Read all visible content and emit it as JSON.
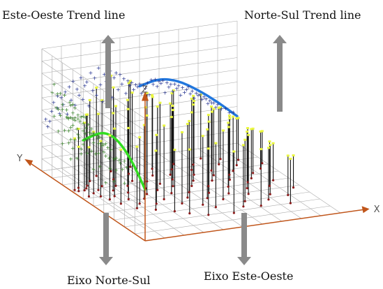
{
  "chart_data": {
    "type": "scatter",
    "title": "",
    "labels": {
      "trend_ew": "Este-Oeste  Trend line",
      "trend_ns": "Norte-Sul  Trend line",
      "axis_ns": "Eixo Norte-Sul",
      "axis_ew": "Eixo Este-Oeste"
    },
    "axes": {
      "x": "X",
      "y": "Y",
      "z": "Z"
    },
    "xlim": [
      0,
      100
    ],
    "ylim": [
      0,
      100
    ],
    "zlim": [
      0,
      100
    ],
    "grid": true,
    "samples": [
      {
        "x": 2,
        "y": 72,
        "z": 42
      },
      {
        "x": 3,
        "y": 70,
        "z": 36
      },
      {
        "x": 5,
        "y": 74,
        "z": 48
      },
      {
        "x": 4,
        "y": 62,
        "z": 40
      },
      {
        "x": 6,
        "y": 70,
        "z": 55
      },
      {
        "x": 8,
        "y": 72,
        "z": 60
      },
      {
        "x": 8,
        "y": 65,
        "z": 50
      },
      {
        "x": 9,
        "y": 60,
        "z": 45
      },
      {
        "x": 10,
        "y": 75,
        "z": 58
      },
      {
        "x": 11,
        "y": 55,
        "z": 52
      },
      {
        "x": 12,
        "y": 68,
        "z": 62
      },
      {
        "x": 13,
        "y": 48,
        "z": 44
      },
      {
        "x": 14,
        "y": 80,
        "z": 66
      },
      {
        "x": 15,
        "y": 58,
        "z": 55
      },
      {
        "x": 16,
        "y": 72,
        "z": 70
      },
      {
        "x": 17,
        "y": 40,
        "z": 50
      },
      {
        "x": 18,
        "y": 65,
        "z": 63
      },
      {
        "x": 19,
        "y": 52,
        "z": 58
      },
      {
        "x": 20,
        "y": 85,
        "z": 72
      },
      {
        "x": 21,
        "y": 45,
        "z": 54
      },
      {
        "x": 22,
        "y": 70,
        "z": 65
      },
      {
        "x": 23,
        "y": 60,
        "z": 68
      },
      {
        "x": 24,
        "y": 35,
        "z": 48
      },
      {
        "x": 25,
        "y": 78,
        "z": 75
      },
      {
        "x": 26,
        "y": 50,
        "z": 60
      },
      {
        "x": 27,
        "y": 68,
        "z": 70
      },
      {
        "x": 28,
        "y": 42,
        "z": 56
      },
      {
        "x": 29,
        "y": 88,
        "z": 78
      },
      {
        "x": 30,
        "y": 55,
        "z": 64
      },
      {
        "x": 31,
        "y": 30,
        "z": 50
      },
      {
        "x": 32,
        "y": 73,
        "z": 72
      },
      {
        "x": 33,
        "y": 62,
        "z": 66
      },
      {
        "x": 34,
        "y": 46,
        "z": 60
      },
      {
        "x": 35,
        "y": 82,
        "z": 74
      },
      {
        "x": 36,
        "y": 25,
        "z": 52
      },
      {
        "x": 37,
        "y": 58,
        "z": 68
      },
      {
        "x": 38,
        "y": 70,
        "z": 72
      },
      {
        "x": 39,
        "y": 38,
        "z": 58
      },
      {
        "x": 40,
        "y": 90,
        "z": 70
      },
      {
        "x": 41,
        "y": 52,
        "z": 62
      },
      {
        "x": 42,
        "y": 65,
        "z": 66
      },
      {
        "x": 43,
        "y": 20,
        "z": 54
      },
      {
        "x": 44,
        "y": 76,
        "z": 64
      },
      {
        "x": 45,
        "y": 44,
        "z": 60
      },
      {
        "x": 46,
        "y": 60,
        "z": 62
      },
      {
        "x": 47,
        "y": 33,
        "z": 56
      },
      {
        "x": 48,
        "y": 84,
        "z": 60
      },
      {
        "x": 49,
        "y": 50,
        "z": 58
      },
      {
        "x": 50,
        "y": 68,
        "z": 60
      },
      {
        "x": 51,
        "y": 28,
        "z": 52
      },
      {
        "x": 52,
        "y": 74,
        "z": 58
      },
      {
        "x": 53,
        "y": 40,
        "z": 56
      },
      {
        "x": 54,
        "y": 57,
        "z": 60
      },
      {
        "x": 55,
        "y": 18,
        "z": 50
      },
      {
        "x": 56,
        "y": 80,
        "z": 62
      },
      {
        "x": 57,
        "y": 46,
        "z": 58
      },
      {
        "x": 58,
        "y": 63,
        "z": 62
      },
      {
        "x": 59,
        "y": 36,
        "z": 56
      },
      {
        "x": 60,
        "y": 86,
        "z": 60
      },
      {
        "x": 61,
        "y": 54,
        "z": 58
      },
      {
        "x": 62,
        "y": 70,
        "z": 60
      },
      {
        "x": 63,
        "y": 24,
        "z": 50
      },
      {
        "x": 64,
        "y": 76,
        "z": 58
      },
      {
        "x": 65,
        "y": 42,
        "z": 54
      },
      {
        "x": 66,
        "y": 60,
        "z": 56
      },
      {
        "x": 67,
        "y": 30,
        "z": 50
      },
      {
        "x": 68,
        "y": 82,
        "z": 56
      },
      {
        "x": 69,
        "y": 50,
        "z": 52
      },
      {
        "x": 70,
        "y": 66,
        "z": 54
      },
      {
        "x": 71,
        "y": 22,
        "z": 46
      },
      {
        "x": 72,
        "y": 72,
        "z": 52
      },
      {
        "x": 73,
        "y": 38,
        "z": 48
      },
      {
        "x": 74,
        "y": 58,
        "z": 50
      },
      {
        "x": 75,
        "y": 88,
        "z": 52
      },
      {
        "x": 76,
        "y": 45,
        "z": 46
      },
      {
        "x": 77,
        "y": 64,
        "z": 48
      },
      {
        "x": 78,
        "y": 28,
        "z": 42
      },
      {
        "x": 79,
        "y": 78,
        "z": 46
      },
      {
        "x": 80,
        "y": 52,
        "z": 44
      },
      {
        "x": 81,
        "y": 68,
        "z": 44
      },
      {
        "x": 82,
        "y": 34,
        "z": 40
      },
      {
        "x": 83,
        "y": 84,
        "z": 42
      },
      {
        "x": 84,
        "y": 56,
        "z": 40
      },
      {
        "x": 85,
        "y": 20,
        "z": 36
      },
      {
        "x": 86,
        "y": 74,
        "z": 38
      },
      {
        "x": 87,
        "y": 44,
        "z": 36
      },
      {
        "x": 88,
        "y": 62,
        "z": 36
      },
      {
        "x": 89,
        "y": 30,
        "z": 32
      },
      {
        "x": 90,
        "y": 80,
        "z": 34
      },
      {
        "x": 92,
        "y": 50,
        "z": 30
      },
      {
        "x": 94,
        "y": 66,
        "z": 30
      },
      {
        "x": 96,
        "y": 38,
        "z": 26
      },
      {
        "x": 98,
        "y": 72,
        "z": 26
      }
    ],
    "trend_lines": [
      {
        "name": "Este-Oeste",
        "color": "#33dd22",
        "x": [
          0,
          10,
          20,
          30,
          40,
          50,
          60
        ],
        "z": [
          42,
          55,
          64,
          68,
          66,
          58,
          48
        ]
      },
      {
        "name": "Norte-Sul",
        "color": "#2277dd",
        "x": [
          50,
          60,
          70,
          80,
          90,
          100
        ],
        "z": [
          58,
          62,
          58,
          48,
          36,
          22
        ]
      }
    ],
    "colors": {
      "ew_points": "#2e7d1e",
      "ns_points": "#1c2a8c",
      "stem": "#111111",
      "stem_top": "#eaf740",
      "base_point": "#8b1a1a",
      "axis": "#c0551a",
      "grid": "#aaaaaa",
      "arrow": "#8a8a8a"
    }
  }
}
